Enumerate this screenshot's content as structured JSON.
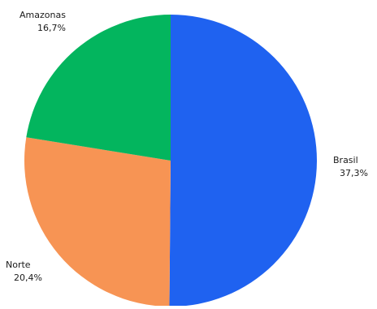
{
  "chart_data": {
    "type": "pie",
    "categories": [
      "Brasil",
      "Norte",
      "Amazonas"
    ],
    "values": [
      37.3,
      20.4,
      16.7
    ],
    "value_labels": [
      "37,3%",
      "20,4%",
      "16,7%"
    ],
    "colors": [
      "#1f62f0",
      "#f79454",
      "#03b55e"
    ],
    "start": "top",
    "direction": "clockwise",
    "title": "",
    "legend": "none"
  }
}
